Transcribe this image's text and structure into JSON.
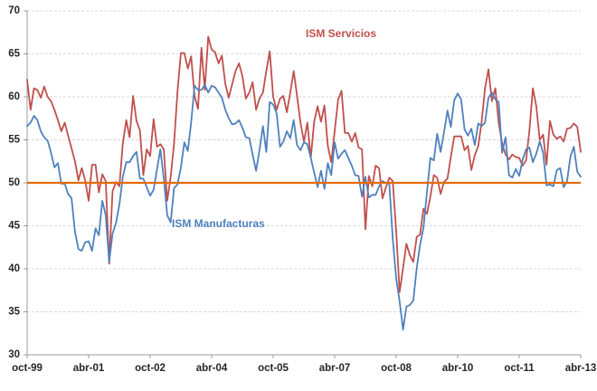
{
  "page": {
    "background": "#FFFFFF"
  },
  "chart_data": {
    "type": "line",
    "title": "",
    "frequency": "monthly",
    "x_start": "oct-99",
    "x_end": "abr-13",
    "x_tick_labels": [
      "oct-99",
      "abr-01",
      "oct-02",
      "abr-04",
      "oct-05",
      "abr-07",
      "oct-08",
      "abr-10",
      "oct-11",
      "abr-13"
    ],
    "x_tick_month_indices": [
      0,
      18,
      36,
      54,
      72,
      90,
      108,
      126,
      144,
      162
    ],
    "y_ticks": [
      30,
      35,
      40,
      45,
      50,
      55,
      60,
      65,
      70
    ],
    "ylim": [
      30,
      70
    ],
    "grid": "horizontal-dashed",
    "grid_color": "#D9D9D9",
    "axis_line_color": "#9B9B9B",
    "axis_label_color": "#262626",
    "legend_position": "inline-annotations",
    "reference_line": {
      "value": 50,
      "color": "#E36C09",
      "width": 2.2
    },
    "series": [
      {
        "name": "ISM Servicios",
        "color": "#C0504D",
        "values": [
          62.0,
          58.5,
          61.0,
          60.8,
          59.9,
          61.2,
          60.0,
          59.5,
          58.5,
          57.3,
          56.0,
          57.0,
          55.5,
          54.0,
          52.5,
          50.3,
          51.7,
          50.3,
          47.9,
          52.1,
          52.1,
          48.9,
          51.0,
          50.2,
          40.6,
          49.0,
          50.1,
          49.6,
          54.6,
          57.3,
          55.3,
          60.1,
          57.2,
          56.1,
          50.9,
          53.9,
          53.1,
          57.4,
          54.2,
          54.5,
          53.9,
          47.9,
          50.7,
          54.5,
          60.6,
          65.1,
          65.1,
          63.3,
          64.7,
          60.1,
          58.6,
          65.7,
          60.8,
          67.0,
          65.5,
          65.2,
          63.9,
          64.8,
          61.5,
          59.9,
          61.5,
          63.0,
          63.9,
          62.4,
          59.8,
          60.5,
          61.7,
          58.5,
          59.8,
          60.5,
          63.0,
          65.3,
          60.0,
          58.5,
          59.8,
          60.1,
          58.2,
          60.5,
          63.0,
          60.1,
          57.0,
          54.8,
          57.0,
          52.9,
          57.1,
          58.9,
          57.1,
          59.0,
          54.3,
          52.4,
          56.0,
          59.7,
          60.7,
          55.8,
          55.8,
          54.8,
          55.8,
          54.1,
          53.9,
          44.6,
          50.8,
          49.6,
          52.0,
          51.7,
          48.2,
          49.5,
          50.6,
          50.2,
          44.4,
          37.3,
          40.1,
          42.9,
          41.6,
          40.8,
          43.7,
          44.0,
          47.0,
          46.4,
          48.4,
          50.9,
          50.6,
          48.7,
          50.1,
          50.5,
          53.0,
          55.4,
          55.4,
          55.4,
          53.8,
          54.3,
          51.5,
          53.2,
          54.3,
          57.0,
          61.0,
          63.2,
          59.5,
          61.0,
          57.0,
          54.6,
          53.3,
          52.7,
          53.3,
          53.0,
          52.9,
          52.0,
          52.6,
          56.1,
          61.0,
          58.9,
          55.0,
          55.6,
          52.1,
          57.2,
          55.6,
          55.1,
          55.4,
          54.8,
          56.3,
          56.4,
          56.9,
          56.5,
          53.6
        ]
      },
      {
        "name": "ISM Manufacturas",
        "color": "#4F81BD",
        "values": [
          56.6,
          57.0,
          57.8,
          57.3,
          56.0,
          55.3,
          54.9,
          53.5,
          51.8,
          52.3,
          49.9,
          49.9,
          48.7,
          48.2,
          44.3,
          42.3,
          42.1,
          43.1,
          43.2,
          42.1,
          44.7,
          43.9,
          47.9,
          46.2,
          40.8,
          44.1,
          45.3,
          47.5,
          50.7,
          52.4,
          52.4,
          53.1,
          53.6,
          50.5,
          50.5,
          49.5,
          48.5,
          49.2,
          51.6,
          53.9,
          50.5,
          46.2,
          45.4,
          49.4,
          49.8,
          51.8,
          54.7,
          53.7,
          57.0,
          61.3,
          60.8,
          60.8,
          61.4,
          60.5,
          61.3,
          61.1,
          60.5,
          59.9,
          58.5,
          57.5,
          56.8,
          56.9,
          57.3,
          56.4,
          55.3,
          55.2,
          53.3,
          51.4,
          53.8,
          56.6,
          53.6,
          59.4,
          59.1,
          58.1,
          54.2,
          54.8,
          56.0,
          55.2,
          57.3,
          54.4,
          53.8,
          54.7,
          54.5,
          52.9,
          51.2,
          49.5,
          51.4,
          49.3,
          52.3,
          50.9,
          54.7,
          52.8,
          53.4,
          53.8,
          52.9,
          52.0,
          50.9,
          50.8,
          48.4,
          50.7,
          48.3,
          48.6,
          48.6,
          49.6,
          50.2,
          50.0,
          49.9,
          43.5,
          38.9,
          36.2,
          32.9,
          35.6,
          35.8,
          36.3,
          40.1,
          42.8,
          44.8,
          48.9,
          52.9,
          52.6,
          55.7,
          53.6,
          55.9,
          58.4,
          56.5,
          59.6,
          60.4,
          59.7,
          56.2,
          55.5,
          56.3,
          54.4,
          56.9,
          56.6,
          57.0,
          59.9,
          60.5,
          59.7,
          59.4,
          53.5,
          55.3,
          50.9,
          50.6,
          51.6,
          50.8,
          52.7,
          53.9,
          54.1,
          52.4,
          53.4,
          54.8,
          53.5,
          49.7,
          49.8,
          49.6,
          51.5,
          51.7,
          49.5,
          50.2,
          53.1,
          54.2,
          51.3,
          50.7
        ]
      }
    ]
  }
}
